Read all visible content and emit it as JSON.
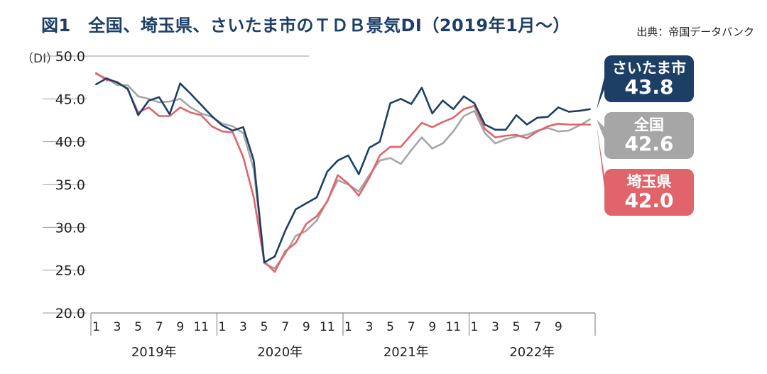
{
  "header": {
    "title": "図1　全国、埼玉県、さいたま市のＴＤＢ景気DI（2019年1月～）",
    "source": "出典：帝国データバンク"
  },
  "chart_data": {
    "type": "line",
    "ylabel": "（DI）",
    "ylim": [
      20,
      50
    ],
    "yticks": [
      "50.0",
      "45.0",
      "40.0",
      "35.0",
      "30.0",
      "25.0",
      "20.0"
    ],
    "yticks_values": [
      50,
      45,
      40,
      35,
      30,
      25,
      20
    ],
    "month_ticks": [
      "1",
      "3",
      "5",
      "7",
      "9",
      "11",
      "1",
      "3",
      "5",
      "7",
      "9",
      "11",
      "1",
      "3",
      "5",
      "7",
      "9",
      "11",
      "1",
      "3",
      "5",
      "7",
      "9"
    ],
    "years": [
      "2019年",
      "2020年",
      "2021年",
      "2022年"
    ],
    "grid": false,
    "series": [
      {
        "name": "さいたま市",
        "latest": "43.8",
        "color": "#1d3f66",
        "values": [
          46.7,
          47.4,
          46.9,
          46.2,
          43.1,
          44.8,
          45.2,
          43.2,
          46.8,
          45.6,
          44.3,
          43.0,
          41.9,
          41.3,
          41.7,
          37.8,
          25.9,
          26.6,
          29.6,
          32.1,
          32.8,
          33.5,
          36.5,
          37.8,
          38.4,
          36.2,
          39.3,
          40.0,
          44.5,
          45.0,
          44.4,
          46.3,
          43.3,
          44.8,
          43.8,
          45.3,
          44.5,
          42.0,
          41.4,
          41.4,
          43.1,
          42.0,
          42.8,
          42.9,
          44.0,
          43.5,
          43.6,
          43.8
        ]
      },
      {
        "name": "全国",
        "latest": "42.6",
        "color": "#a6a6a6",
        "values": [
          47.9,
          47.4,
          46.6,
          46.6,
          45.3,
          45.0,
          44.6,
          44.7,
          45.0,
          44.0,
          43.3,
          42.9,
          42.1,
          41.8,
          41.0,
          36.8,
          25.8,
          25.2,
          26.9,
          29.0,
          29.6,
          30.8,
          33.1,
          35.5,
          35.0,
          34.2,
          36.1,
          37.8,
          38.1,
          37.4,
          39.0,
          40.5,
          39.2,
          39.8,
          41.2,
          43.0,
          43.6,
          41.0,
          39.8,
          40.3,
          40.6,
          40.8,
          41.3,
          41.6,
          41.2,
          41.3,
          41.9,
          42.6
        ]
      },
      {
        "name": "埼玉県",
        "latest": "42.0",
        "color": "#e0646a",
        "values": [
          48.0,
          47.2,
          47.0,
          46.1,
          43.4,
          44.0,
          43.0,
          43.0,
          44.0,
          43.4,
          43.1,
          41.8,
          41.2,
          41.1,
          38.2,
          33.5,
          26.0,
          24.8,
          27.2,
          28.2,
          30.4,
          31.3,
          33.0,
          36.1,
          35.1,
          33.7,
          35.8,
          38.4,
          39.4,
          39.4,
          40.8,
          42.2,
          41.7,
          42.3,
          42.8,
          43.8,
          44.2,
          41.5,
          40.5,
          40.7,
          40.8,
          40.4,
          41.2,
          41.8,
          42.1,
          42.0,
          42.0,
          42.0
        ]
      }
    ]
  }
}
